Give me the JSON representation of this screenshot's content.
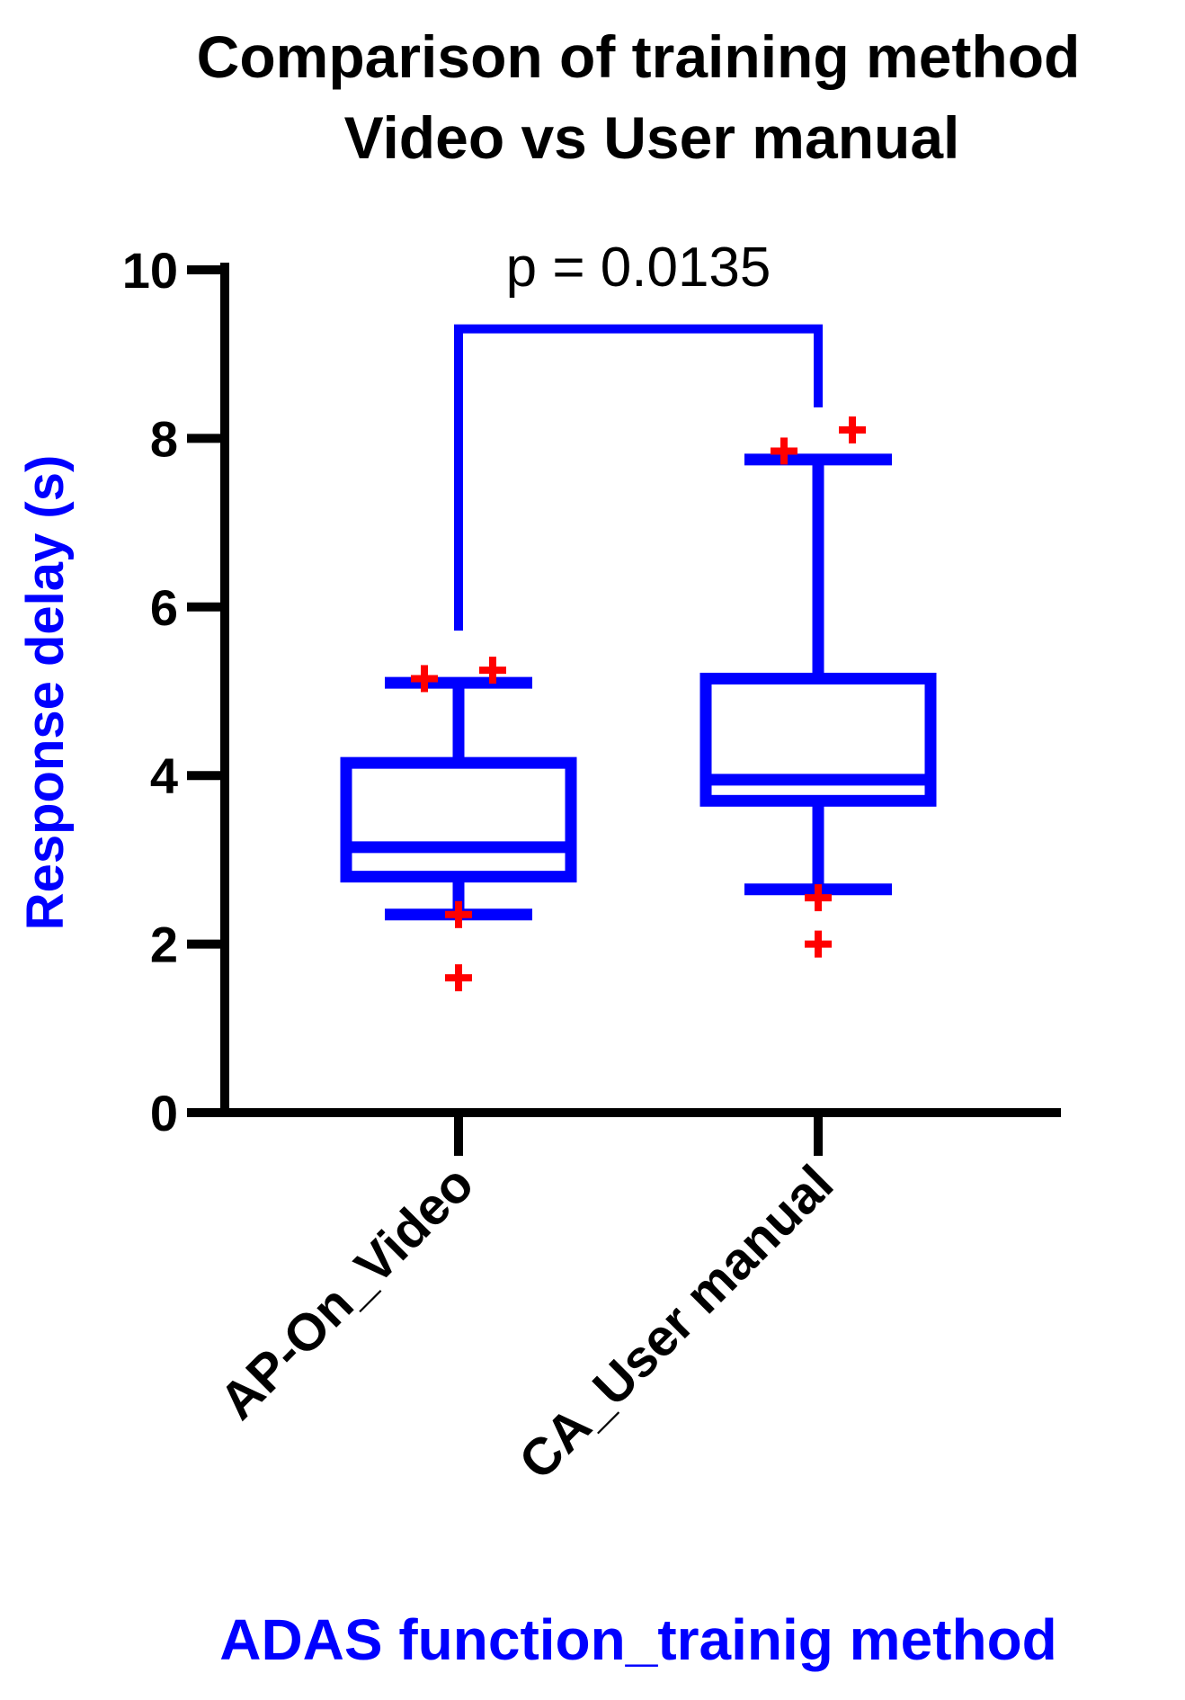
{
  "chart_data": {
    "type": "box",
    "title_lines": [
      "Comparison of training method",
      "Video vs User manual"
    ],
    "xlabel": "ADAS function_trainig method",
    "ylabel": "Response delay (s)",
    "ylim": [
      0,
      10
    ],
    "yticks": [
      0,
      2,
      4,
      6,
      8,
      10
    ],
    "grid": false,
    "categories": [
      "AP-On_Video",
      "CA_User manual"
    ],
    "boxes": [
      {
        "category": "AP-On_Video",
        "whisker_low": 2.35,
        "q1": 2.8,
        "median": 3.15,
        "q3": 4.15,
        "whisker_high": 5.1,
        "outliers": [
          5.15,
          5.25,
          2.35,
          1.6
        ]
      },
      {
        "category": "CA_User manual",
        "whisker_low": 2.65,
        "q1": 3.7,
        "median": 3.95,
        "q3": 5.15,
        "whisker_high": 7.75,
        "outliers": [
          7.85,
          8.1,
          2.55,
          2.0
        ]
      }
    ],
    "annotation": {
      "text": "p = 0.0135",
      "between": [
        "AP-On_Video",
        "CA_User manual"
      ],
      "y": 9.3
    },
    "colors": {
      "box": "#0000ff",
      "outlier": "#ff0000",
      "axis": "#000000",
      "xlabel": "#0000ff",
      "ylabel": "#0000ff"
    }
  }
}
